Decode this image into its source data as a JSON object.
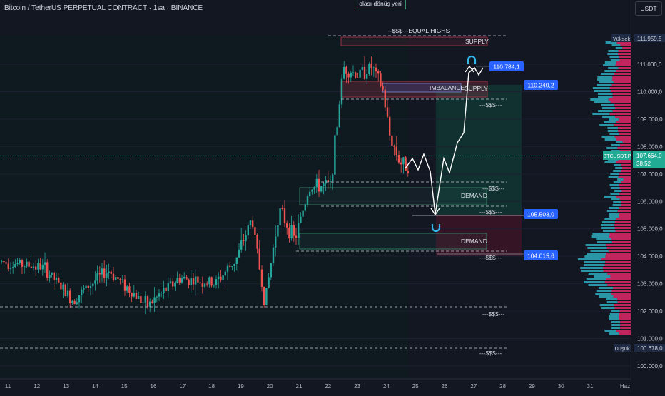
{
  "header": {
    "title": "Bitcoin / TetherUS PERPETUAL CONTRACT · 1sa · BINANCE",
    "annotation": "olası dönüş yeri",
    "currency": "USDT"
  },
  "zones": {
    "supply_top": "SUPPLY",
    "supply_mid": "SUPPLY",
    "imbalance": "IMBALANCE",
    "demand_upper": "DEMAND",
    "demand_lower": "DEMAND",
    "equal_highs": "--$$$---EQUAL HIGHS"
  },
  "liquidity_label": "---$$$---",
  "price_tags": [
    "110.784,1",
    "110.240,2",
    "105.503,0",
    "104.015,6"
  ],
  "y_axis": {
    "ticks": [
      "111.000,0",
      "110.000,0",
      "109.000,0",
      "108.000,0",
      "107.000,0",
      "106.000,0",
      "105.000,0",
      "104.000,0",
      "103.000,0",
      "102.000,0",
      "101.000,0",
      "100.000,0"
    ],
    "high_label": "Yüksek",
    "high_value": "111.959,5",
    "low_label": "Düşük",
    "low_value": "100.678,0",
    "current_symbol": "BTCUSDT.P",
    "current_price": "107.664,0",
    "countdown": "38:52"
  },
  "x_axis": {
    "ticks": [
      "11",
      "12",
      "13",
      "14",
      "15",
      "16",
      "17",
      "18",
      "19",
      "20",
      "21",
      "22",
      "23",
      "24",
      "25",
      "26",
      "27",
      "28",
      "29",
      "30",
      "31",
      "Haz"
    ]
  },
  "colors": {
    "background": "#131722",
    "up": "#26a69a",
    "down": "#ef5350",
    "supply_border": "#b2394a",
    "demand_border": "#3a8f6e",
    "tag_blue": "#2962ff",
    "current_price_bg": "#22ab94",
    "vp_red": "#c2255c",
    "vp_teal": "#2a97a8",
    "magnet": "#33b5e5"
  },
  "icons": [
    "magnet-icon"
  ]
}
